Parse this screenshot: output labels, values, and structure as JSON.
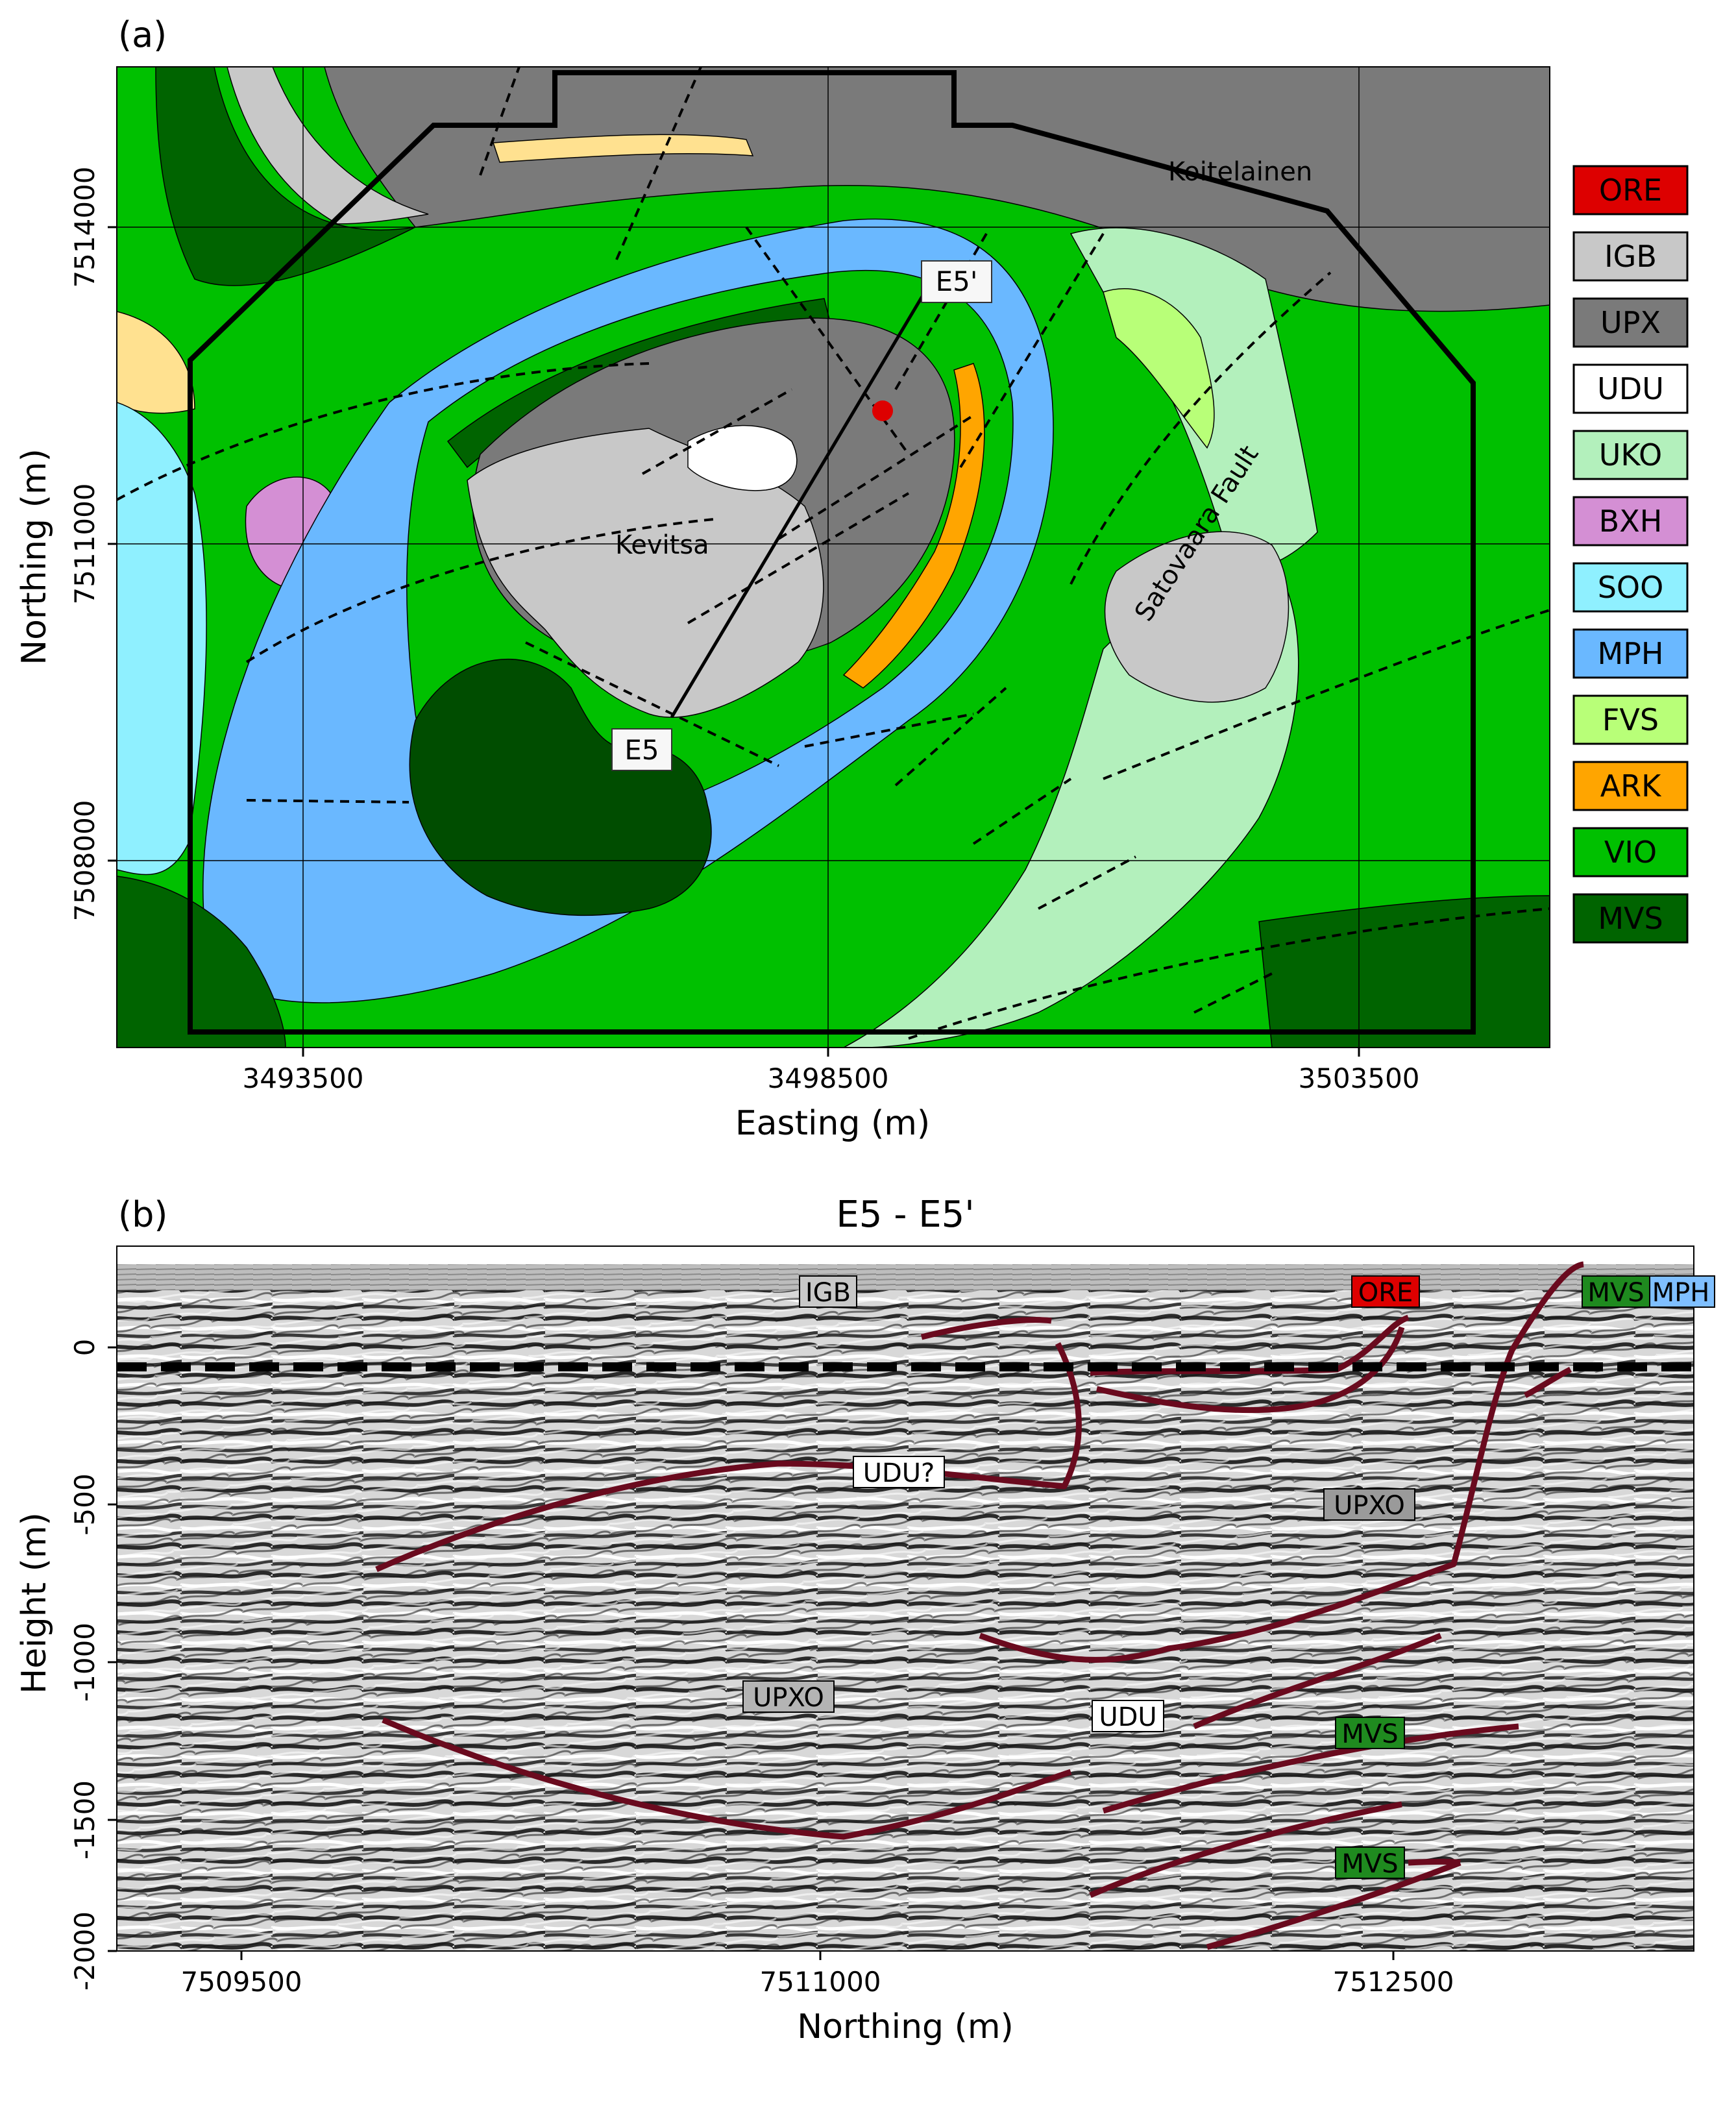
{
  "panel_a": {
    "panel_label": "(a)",
    "xlabel": "Easting (m)",
    "ylabel": "Northing (m)",
    "x_ticks": [
      "3493500",
      "3498500",
      "3503500"
    ],
    "y_ticks": [
      "7514000",
      "7511000",
      "7508000"
    ],
    "place_labels": {
      "koitelainen": "Koitelainen",
      "kevitsa": "Kevitsa",
      "satovaara": "Satovaara Fault"
    },
    "profile_labels": {
      "start": "E5",
      "end": "E5'"
    },
    "legend": [
      {
        "code": "ORE",
        "color": "#dd0000"
      },
      {
        "code": "IGB",
        "color": "#c8c8c8"
      },
      {
        "code": "UPX",
        "color": "#7a7a7a"
      },
      {
        "code": "UDU",
        "color": "#ffffff"
      },
      {
        "code": "UKO",
        "color": "#b3f0bc"
      },
      {
        "code": "BXH",
        "color": "#d48fd4"
      },
      {
        "code": "SOO",
        "color": "#8ff0ff"
      },
      {
        "code": "MPH",
        "color": "#6ab8ff"
      },
      {
        "code": "FVS",
        "color": "#b8ff78"
      },
      {
        "code": "ARK",
        "color": "#ffa500"
      },
      {
        "code": "VIO",
        "color": "#00c000"
      },
      {
        "code": "MVS",
        "color": "#006400"
      }
    ]
  },
  "panel_b": {
    "panel_label": "(b)",
    "title": "E5 - E5'",
    "xlabel": "Northing (m)",
    "ylabel": "Height (m)",
    "x_ticks": [
      "7509500",
      "7511000",
      "7512500"
    ],
    "y_ticks": [
      "0",
      "-500",
      "-1000",
      "-1500",
      "-2000"
    ],
    "annotations": [
      {
        "text": "IGB",
        "bg": "#c8c8c8"
      },
      {
        "text": "ORE",
        "bg": "#dd0000"
      },
      {
        "text": "MVS",
        "bg": "#1f8a1f"
      },
      {
        "text": "MPH",
        "bg": "#7fbfff"
      },
      {
        "text": "UDU?",
        "bg": "#ffffff"
      },
      {
        "text": "UPXO",
        "bg": "#9a9a9a"
      },
      {
        "text": "UPXO",
        "bg": "#b4b4b4"
      },
      {
        "text": "UDU",
        "bg": "#ffffff"
      },
      {
        "text": "MVS",
        "bg": "#1f8a1f"
      },
      {
        "text": "MVS",
        "bg": "#1f8a1f"
      }
    ]
  }
}
